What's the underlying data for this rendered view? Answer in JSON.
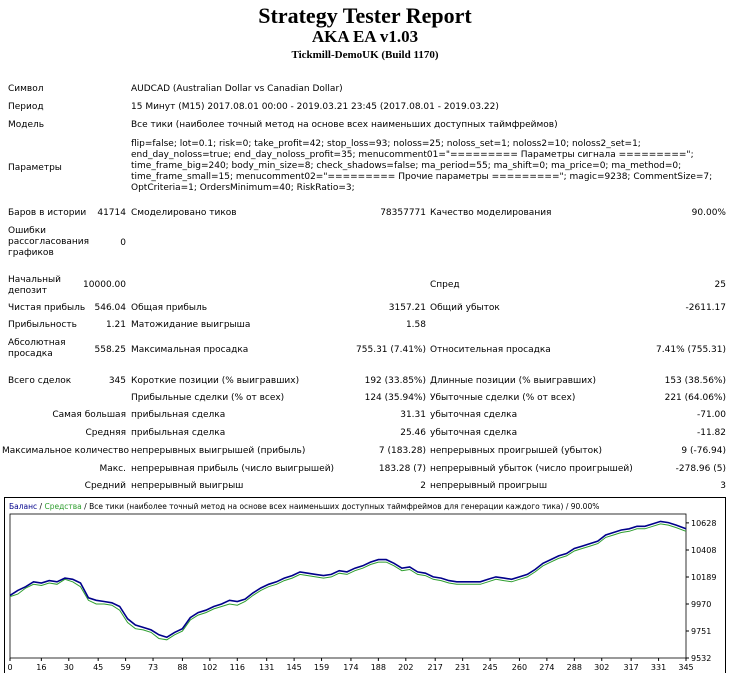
{
  "header": {
    "title": "Strategy Tester Report",
    "ea": "AKA EA v1.03",
    "server": "Tickmill-DemoUK (Build 1170)"
  },
  "info": {
    "symbol_label": "Символ",
    "symbol_value": "AUDCAD (Australian Dollar vs Canadian Dollar)",
    "period_label": "Период",
    "period_value": "15 Минут (M15) 2017.08.01 00:00 - 2019.03.21 23:45 (2017.08.01 - 2019.03.22)",
    "model_label": "Модель",
    "model_value": "Все тики (наиболее точный метод на основе всех наименьших доступных таймфреймов)",
    "params_label": "Параметры",
    "params_value": "flip=false; lot=0.1; risk=0; take_profit=42; stop_loss=93; noloss=25; noloss_set=1; noloss2=10; noloss2_set=1; end_day_noloss=true; end_day_noloss_profit=35; menucomment01=\"========= Параметры сигнала =========\"; time_frame_big=240; body_min_size=8; check_shadows=false; ma_period=55; ma_shift=0; ma_price=0; ma_method=0; time_frame_small=15; menucomment02=\"========= Прочие параметры =========\"; magic=9238; CommentSize=7; OptCriteria=1; OrdersMinimum=40; RiskRatio=3;"
  },
  "stats": {
    "bars_label": "Баров в истории",
    "bars_value": "41714",
    "ticks_label": "Смоделировано тиков",
    "ticks_value": "78357771",
    "quality_label": "Качество моделирования",
    "quality_value": "90.00%",
    "errors_label": "Ошибки рассогласования графиков",
    "errors_value": "0",
    "deposit_label": "Начальный депозит",
    "deposit_value": "10000.00",
    "spread_label": "Спред",
    "spread_value": "25",
    "netprofit_label": "Чистая прибыль",
    "netprofit_value": "546.04",
    "grossprofit_label": "Общая прибыль",
    "grossprofit_value": "3157.21",
    "grossloss_label": "Общий убыток",
    "grossloss_value": "-2611.17",
    "pf_label": "Прибыльность",
    "pf_value": "1.21",
    "payoff_label": "Матожидание выигрыша",
    "payoff_value": "1.58",
    "absdd_label": "Абсолютная просадка",
    "absdd_value": "558.25",
    "maxdd_label": "Максимальная просадка",
    "maxdd_value": "755.31 (7.41%)",
    "reldd_label": "Относительная просадка",
    "reldd_value": "7.41% (755.31)",
    "trades_label": "Всего сделок",
    "trades_value": "345",
    "short_label": "Короткие позиции (% выигравших)",
    "short_value": "192 (33.85%)",
    "long_label": "Длинные позиции (% выигравших)",
    "long_value": "153 (38.56%)",
    "profit_trades_label": "Прибыльные сделки (% от всех)",
    "profit_trades_value": "124 (35.94%)",
    "loss_trades_label": "Убыточные сделки (% от всех)",
    "loss_trades_value": "221 (64.06%)",
    "largest_label": "Самая большая",
    "largest_profit_label": "прибыльная сделка",
    "largest_profit_value": "31.31",
    "largest_loss_label": "убыточная сделка",
    "largest_loss_value": "-71.00",
    "average_label": "Средняя",
    "average_profit_label": "прибыльная сделка",
    "average_profit_value": "25.46",
    "average_loss_label": "убыточная сделка",
    "average_loss_value": "-11.82",
    "maxcount_label": "Максимальное количество",
    "maxcount_wins_label": "непрерывных выигрышей (прибыль)",
    "maxcount_wins_value": "7 (183.28)",
    "maxcount_losses_label": "непрерывных проигрышей (убыток)",
    "maxcount_losses_value": "9 (-76.94)",
    "maxprofit_label": "Макс.",
    "maxprofit_wins_label": "непрерывная прибыль (число выигрышей)",
    "maxprofit_wins_value": "183.28 (7)",
    "maxprofit_losses_label": "непрерывный убыток (число проигрышей)",
    "maxprofit_losses_value": "-278.96 (5)",
    "avgcons_label": "Средний",
    "avgcons_wins_label": "непрерывный выигрыш",
    "avgcons_wins_value": "2",
    "avgcons_losses_label": "непрерывный проигрыш",
    "avgcons_losses_value": "3"
  },
  "colors": {
    "balance": "#00008b",
    "equity": "#2e9e2e",
    "axis": "#000000",
    "grid": "#c8c8c8"
  },
  "chart_data": {
    "type": "line",
    "legend_balance": "Баланс",
    "legend_sep": " / ",
    "legend_equity": "Средства",
    "legend_rest": " / Все тики (наиболее точный метод на основе всех наименьших доступных таймфреймов для генерации каждого тика) / 90.00%",
    "x_ticks": [
      0,
      16,
      30,
      45,
      59,
      73,
      88,
      102,
      116,
      131,
      145,
      159,
      174,
      188,
      202,
      217,
      231,
      245,
      260,
      274,
      288,
      302,
      317,
      331,
      345
    ],
    "y_ticks": [
      9532,
      9751,
      9970,
      10189,
      10408,
      10628
    ],
    "xlim": [
      0,
      345
    ],
    "ylim": [
      9532,
      10700
    ],
    "series": [
      {
        "name": "Баланс",
        "x": [
          0,
          4,
          8,
          12,
          16,
          20,
          24,
          28,
          32,
          36,
          40,
          44,
          48,
          52,
          56,
          60,
          64,
          68,
          72,
          76,
          80,
          84,
          88,
          92,
          96,
          100,
          104,
          108,
          112,
          116,
          120,
          124,
          128,
          132,
          136,
          140,
          144,
          148,
          152,
          156,
          160,
          164,
          168,
          172,
          176,
          180,
          184,
          188,
          192,
          196,
          200,
          204,
          208,
          212,
          216,
          220,
          224,
          228,
          232,
          236,
          240,
          244,
          248,
          252,
          256,
          260,
          264,
          268,
          272,
          276,
          280,
          284,
          288,
          292,
          296,
          300,
          304,
          308,
          312,
          316,
          320,
          324,
          328,
          332,
          336,
          340,
          345
        ],
        "values": [
          10040,
          10080,
          10110,
          10150,
          10140,
          10160,
          10150,
          10180,
          10170,
          10140,
          10020,
          10000,
          9990,
          9980,
          9950,
          9850,
          9800,
          9780,
          9760,
          9720,
          9700,
          9740,
          9770,
          9860,
          9900,
          9920,
          9950,
          9970,
          10000,
          9990,
          10010,
          10060,
          10100,
          10130,
          10150,
          10180,
          10200,
          10230,
          10220,
          10210,
          10200,
          10210,
          10240,
          10230,
          10260,
          10280,
          10310,
          10330,
          10330,
          10300,
          10260,
          10270,
          10230,
          10220,
          10190,
          10180,
          10160,
          10150,
          10150,
          10150,
          10150,
          10170,
          10190,
          10180,
          10170,
          10190,
          10210,
          10250,
          10300,
          10330,
          10360,
          10380,
          10420,
          10440,
          10460,
          10480,
          10530,
          10550,
          10570,
          10580,
          10600,
          10600,
          10620,
          10640,
          10630,
          10610,
          10580
        ]
      },
      {
        "name": "Средства",
        "x": [
          0,
          4,
          8,
          12,
          16,
          20,
          24,
          28,
          32,
          36,
          40,
          44,
          48,
          52,
          56,
          60,
          64,
          68,
          72,
          76,
          80,
          84,
          88,
          92,
          96,
          100,
          104,
          108,
          112,
          116,
          120,
          124,
          128,
          132,
          136,
          140,
          144,
          148,
          152,
          156,
          160,
          164,
          168,
          172,
          176,
          180,
          184,
          188,
          192,
          196,
          200,
          204,
          208,
          212,
          216,
          220,
          224,
          228,
          232,
          236,
          240,
          244,
          248,
          252,
          256,
          260,
          264,
          268,
          272,
          276,
          280,
          284,
          288,
          292,
          296,
          300,
          304,
          308,
          312,
          316,
          320,
          324,
          328,
          332,
          336,
          340,
          345
        ],
        "values": [
          10030,
          10050,
          10100,
          10130,
          10120,
          10140,
          10130,
          10170,
          10150,
          10110,
          10000,
          9970,
          9970,
          9960,
          9920,
          9820,
          9770,
          9760,
          9740,
          9690,
          9680,
          9720,
          9750,
          9840,
          9880,
          9900,
          9930,
          9950,
          9970,
          9960,
          9990,
          10040,
          10080,
          10110,
          10130,
          10160,
          10180,
          10210,
          10200,
          10190,
          10180,
          10190,
          10220,
          10210,
          10240,
          10260,
          10290,
          10310,
          10310,
          10280,
          10240,
          10250,
          10210,
          10200,
          10170,
          10160,
          10140,
          10130,
          10130,
          10130,
          10130,
          10150,
          10170,
          10160,
          10150,
          10170,
          10190,
          10230,
          10280,
          10310,
          10340,
          10360,
          10400,
          10420,
          10440,
          10460,
          10510,
          10530,
          10550,
          10560,
          10580,
          10580,
          10600,
          10620,
          10610,
          10590,
          10560
        ]
      }
    ]
  }
}
